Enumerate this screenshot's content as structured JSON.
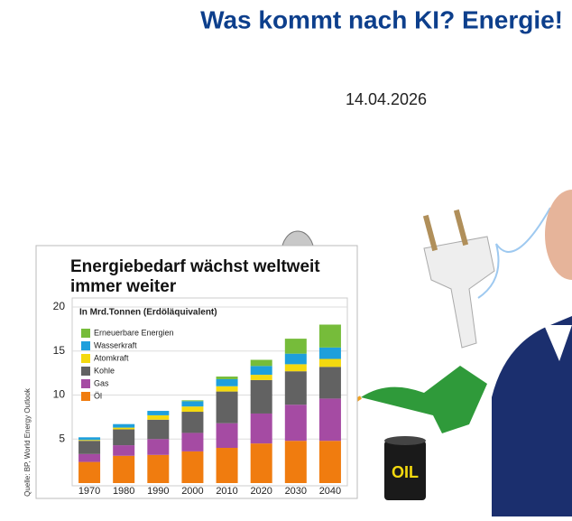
{
  "header": {
    "title": "Was kommt nach KI? Energie!",
    "date": "14.04.2026"
  },
  "chart_data": {
    "type": "stacked-bar",
    "title": "Energiebedarf wächst weltweit immer weiter",
    "subtitle": "In Mrd.Tonnen (Erdöläquivalent)",
    "source": "Quelle: BP, World Energy Outlook",
    "categories": [
      "1970",
      "1980",
      "1990",
      "2000",
      "2010",
      "2020",
      "2030",
      "2040"
    ],
    "series": [
      {
        "name": "Erneuerbare Energien",
        "color": "#76bc3a",
        "values": [
          0,
          0,
          0,
          0.1,
          0.3,
          0.7,
          1.7,
          2.6
        ]
      },
      {
        "name": "Wasserkraft",
        "color": "#1e9fdc",
        "values": [
          0.3,
          0.4,
          0.5,
          0.6,
          0.8,
          1.0,
          1.2,
          1.3
        ]
      },
      {
        "name": "Atomkraft",
        "color": "#f4d90f",
        "values": [
          0.1,
          0.2,
          0.5,
          0.6,
          0.6,
          0.6,
          0.8,
          0.9
        ]
      },
      {
        "name": "Kohle",
        "color": "#626262",
        "values": [
          1.5,
          1.8,
          2.2,
          2.4,
          3.6,
          3.8,
          3.8,
          3.6
        ]
      },
      {
        "name": "Gas",
        "color": "#a54ba3",
        "values": [
          0.9,
          1.2,
          1.8,
          2.1,
          2.8,
          3.4,
          4.1,
          4.8
        ]
      },
      {
        "name": "Öl",
        "color": "#f07c0f",
        "values": [
          2.4,
          3.1,
          3.2,
          3.6,
          4.0,
          4.5,
          4.8,
          4.8
        ]
      }
    ],
    "ylim": [
      0,
      20
    ],
    "yticks": [
      5,
      10,
      15,
      20
    ],
    "grid": true
  },
  "illustration": {
    "barrel_label": "OIL"
  }
}
